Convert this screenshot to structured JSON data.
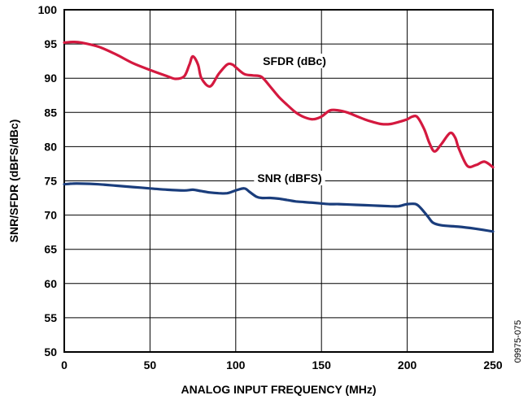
{
  "chart_data": {
    "type": "line",
    "xlabel": "ANALOG INPUT FREQUENCY (MHz)",
    "ylabel": "SNR/SFDR (dBFS/dBc)",
    "xlim": [
      0,
      250
    ],
    "ylim": [
      50,
      100
    ],
    "xticks": [
      0,
      50,
      100,
      150,
      200,
      250
    ],
    "yticks": [
      50,
      55,
      60,
      65,
      70,
      75,
      80,
      85,
      90,
      95,
      100
    ],
    "grid": true,
    "series": [
      {
        "name": "SFDR (dBc)",
        "color": "#d4193f",
        "x": [
          0,
          5,
          10,
          20,
          30,
          40,
          50,
          60,
          65,
          70,
          73,
          75,
          78,
          80,
          85,
          90,
          95,
          98,
          100,
          105,
          110,
          115,
          120,
          125,
          130,
          135,
          140,
          145,
          150,
          155,
          160,
          165,
          170,
          175,
          180,
          185,
          190,
          195,
          200,
          203,
          206,
          210,
          213,
          216,
          220,
          225,
          228,
          230,
          235,
          240,
          245,
          250
        ],
        "y": [
          95.2,
          95.3,
          95.2,
          94.6,
          93.5,
          92.2,
          91.2,
          90.3,
          89.9,
          90.3,
          92.0,
          93.2,
          92.0,
          90.0,
          88.8,
          90.6,
          92.0,
          92.0,
          91.6,
          90.6,
          90.4,
          90.2,
          88.8,
          87.3,
          86.1,
          85.0,
          84.3,
          84.0,
          84.4,
          85.3,
          85.3,
          85.0,
          84.5,
          84.0,
          83.6,
          83.3,
          83.3,
          83.6,
          84.0,
          84.4,
          84.3,
          82.5,
          80.5,
          79.3,
          80.4,
          82.0,
          81.3,
          79.8,
          77.2,
          77.3,
          77.8,
          77.0
        ]
      },
      {
        "name": "SNR (dBFS)",
        "color": "#1a3d7c",
        "x": [
          0,
          5,
          10,
          20,
          30,
          40,
          50,
          60,
          70,
          75,
          80,
          85,
          90,
          95,
          100,
          105,
          108,
          112,
          115,
          120,
          125,
          130,
          135,
          140,
          145,
          150,
          155,
          160,
          170,
          180,
          190,
          195,
          200,
          205,
          208,
          212,
          215,
          220,
          230,
          240,
          250
        ],
        "y": [
          74.5,
          74.6,
          74.6,
          74.5,
          74.3,
          74.1,
          73.9,
          73.7,
          73.6,
          73.7,
          73.5,
          73.3,
          73.2,
          73.2,
          73.6,
          73.9,
          73.4,
          72.7,
          72.5,
          72.5,
          72.4,
          72.2,
          72.0,
          71.9,
          71.8,
          71.7,
          71.6,
          71.6,
          71.5,
          71.4,
          71.3,
          71.3,
          71.6,
          71.6,
          71.0,
          69.8,
          68.9,
          68.5,
          68.3,
          68.0,
          67.6
        ]
      }
    ],
    "annotations": [
      {
        "text": "SFDR (dBc)",
        "series": 0
      },
      {
        "text": "SNR (dBFS)",
        "series": 1
      }
    ],
    "figure_id": "09975-075"
  }
}
